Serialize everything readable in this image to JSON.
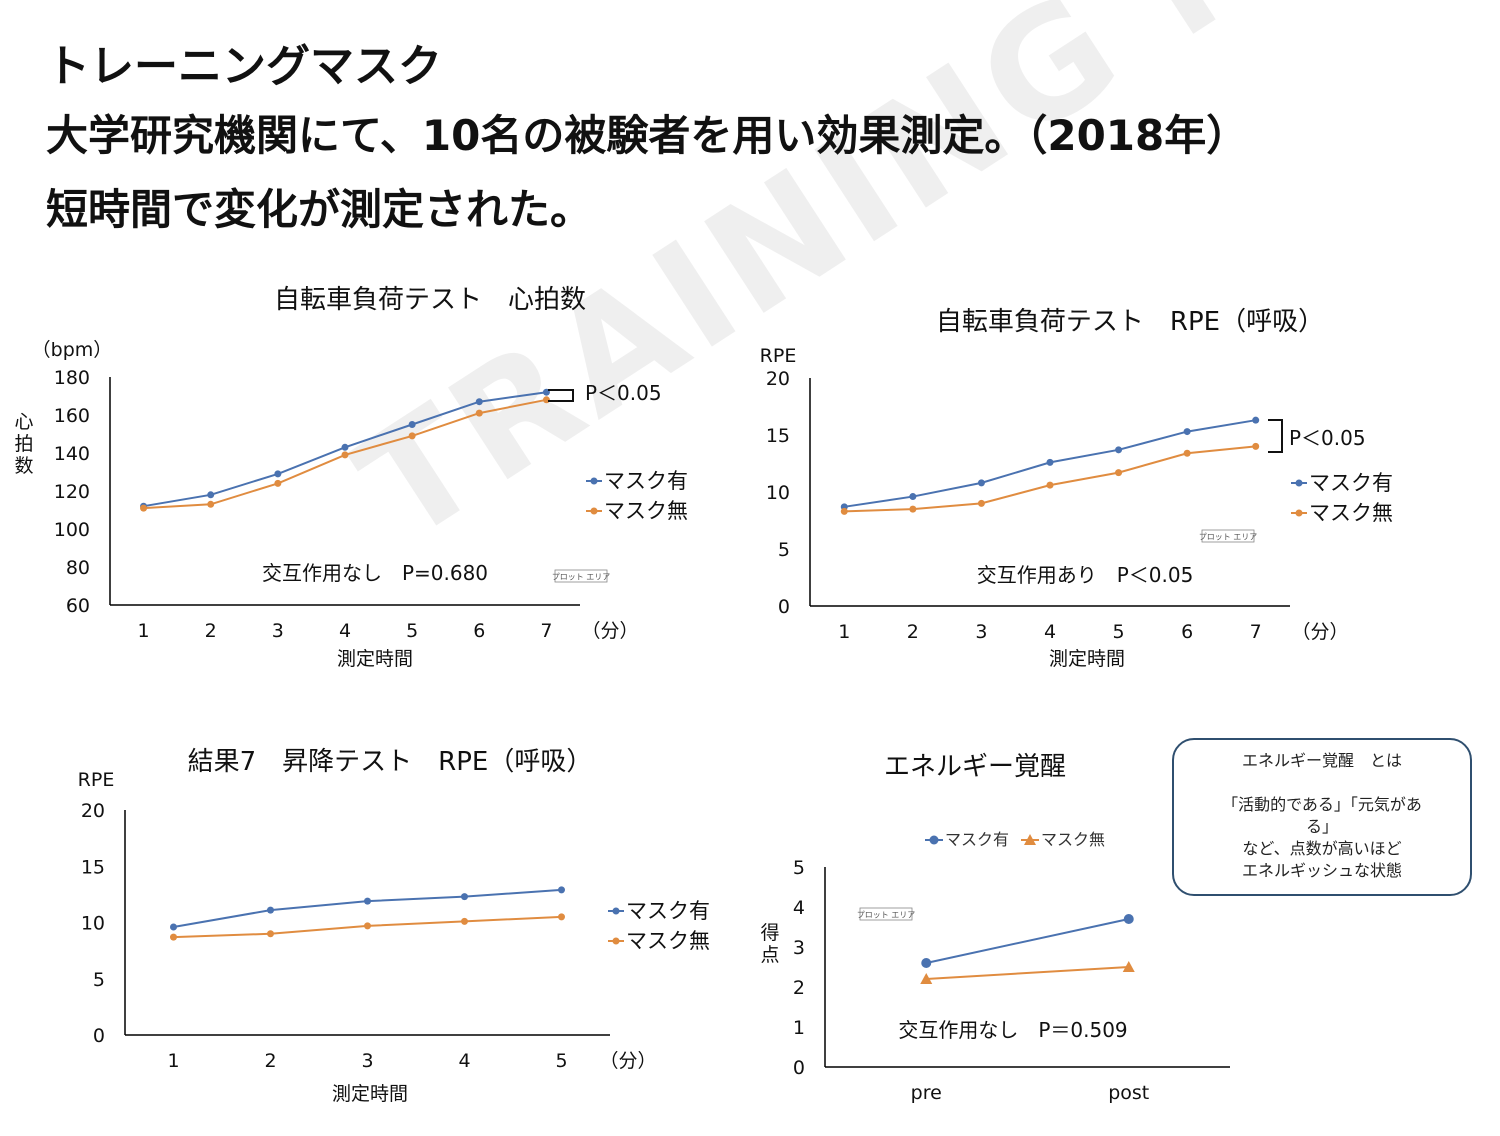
{
  "header": {
    "line1": "トレーニングマスク",
    "line2": "大学研究機関にて、10名の被験者を用い効果測定。（2018年）",
    "line3": "短時間で変化が測定された。"
  },
  "watermark_text": "TRAINING MASK",
  "colors": {
    "with_mask": "#4a72b0",
    "without_mask": "#e08c40",
    "axis": "#000000"
  },
  "chart_data": [
    {
      "type": "line",
      "title": "自転車負荷テスト　心拍数",
      "unit_label": "（bpm）",
      "ylabel": "心拍数",
      "xlabel": "測定時間",
      "x_unit": "（分）",
      "categories": [
        "1",
        "2",
        "3",
        "4",
        "5",
        "6",
        "7"
      ],
      "ylim": [
        60,
        180
      ],
      "yticks": [
        "60",
        "80",
        "100",
        "120",
        "140",
        "160",
        "180"
      ],
      "series": [
        {
          "name": "マスク有",
          "values": [
            112,
            118,
            129,
            143,
            155,
            167,
            172
          ]
        },
        {
          "name": "マスク無",
          "values": [
            111,
            113,
            124,
            139,
            149,
            161,
            168
          ]
        }
      ],
      "annotation": "交互作用なし　P=0.680",
      "significance": "P＜0.05",
      "plot_area_label": "プロット エリア",
      "marker": "circle",
      "legend": "right"
    },
    {
      "type": "line",
      "title": "自転車負荷テスト　RPE（呼吸）",
      "unit_label": "RPE",
      "ylabel": "",
      "xlabel": "測定時間",
      "x_unit": "（分）",
      "categories": [
        "1",
        "2",
        "3",
        "4",
        "5",
        "6",
        "7"
      ],
      "ylim": [
        0,
        20
      ],
      "yticks": [
        "0",
        "5",
        "10",
        "15",
        "20"
      ],
      "series": [
        {
          "name": "マスク有",
          "values": [
            8.7,
            9.6,
            10.8,
            12.6,
            13.7,
            15.3,
            16.3
          ]
        },
        {
          "name": "マスク無",
          "values": [
            8.3,
            8.5,
            9.0,
            10.6,
            11.7,
            13.4,
            14.0
          ]
        }
      ],
      "annotation": "交互作用あり　P＜0.05",
      "significance": "P＜0.05",
      "plot_area_label": "プロット エリア",
      "marker": "circle",
      "legend": "right"
    },
    {
      "type": "line",
      "title": "結果7　昇降テスト　RPE（呼吸）",
      "unit_label": "RPE",
      "ylabel": "",
      "xlabel": "測定時間",
      "x_unit": "（分）",
      "categories": [
        "1",
        "2",
        "3",
        "4",
        "5"
      ],
      "ylim": [
        0,
        20
      ],
      "yticks": [
        "0",
        "5",
        "10",
        "15",
        "20"
      ],
      "series": [
        {
          "name": "マスク有",
          "values": [
            9.6,
            11.1,
            11.9,
            12.3,
            12.9
          ]
        },
        {
          "name": "マスク無",
          "values": [
            8.7,
            9.0,
            9.7,
            10.1,
            10.5
          ]
        }
      ],
      "annotation": "",
      "significance": "",
      "plot_area_label": "",
      "marker": "circle",
      "legend": "right"
    },
    {
      "type": "line",
      "title": "エネルギー覚醒",
      "unit_label": "",
      "ylabel": "得点",
      "xlabel": "",
      "x_unit": "",
      "categories": [
        "pre",
        "post"
      ],
      "ylim": [
        0,
        5
      ],
      "yticks": [
        "0",
        "1",
        "2",
        "3",
        "4",
        "5"
      ],
      "series": [
        {
          "name": "マスク有",
          "values": [
            2.6,
            3.7
          ],
          "marker": "circle"
        },
        {
          "name": "マスク無",
          "values": [
            2.2,
            2.5
          ],
          "marker": "triangle"
        }
      ],
      "annotation": "交互作用なし　P＝0.509",
      "significance": "",
      "plot_area_label": "プロット エリア",
      "legend": "top"
    }
  ],
  "info_box": {
    "title": "エネルギー覚醒　とは",
    "body_line1": "「活動的である」「元気があ",
    "body_line2": "る」",
    "body_line3": "など、点数が高いほど",
    "body_line4": "エネルギッシュな状態"
  }
}
